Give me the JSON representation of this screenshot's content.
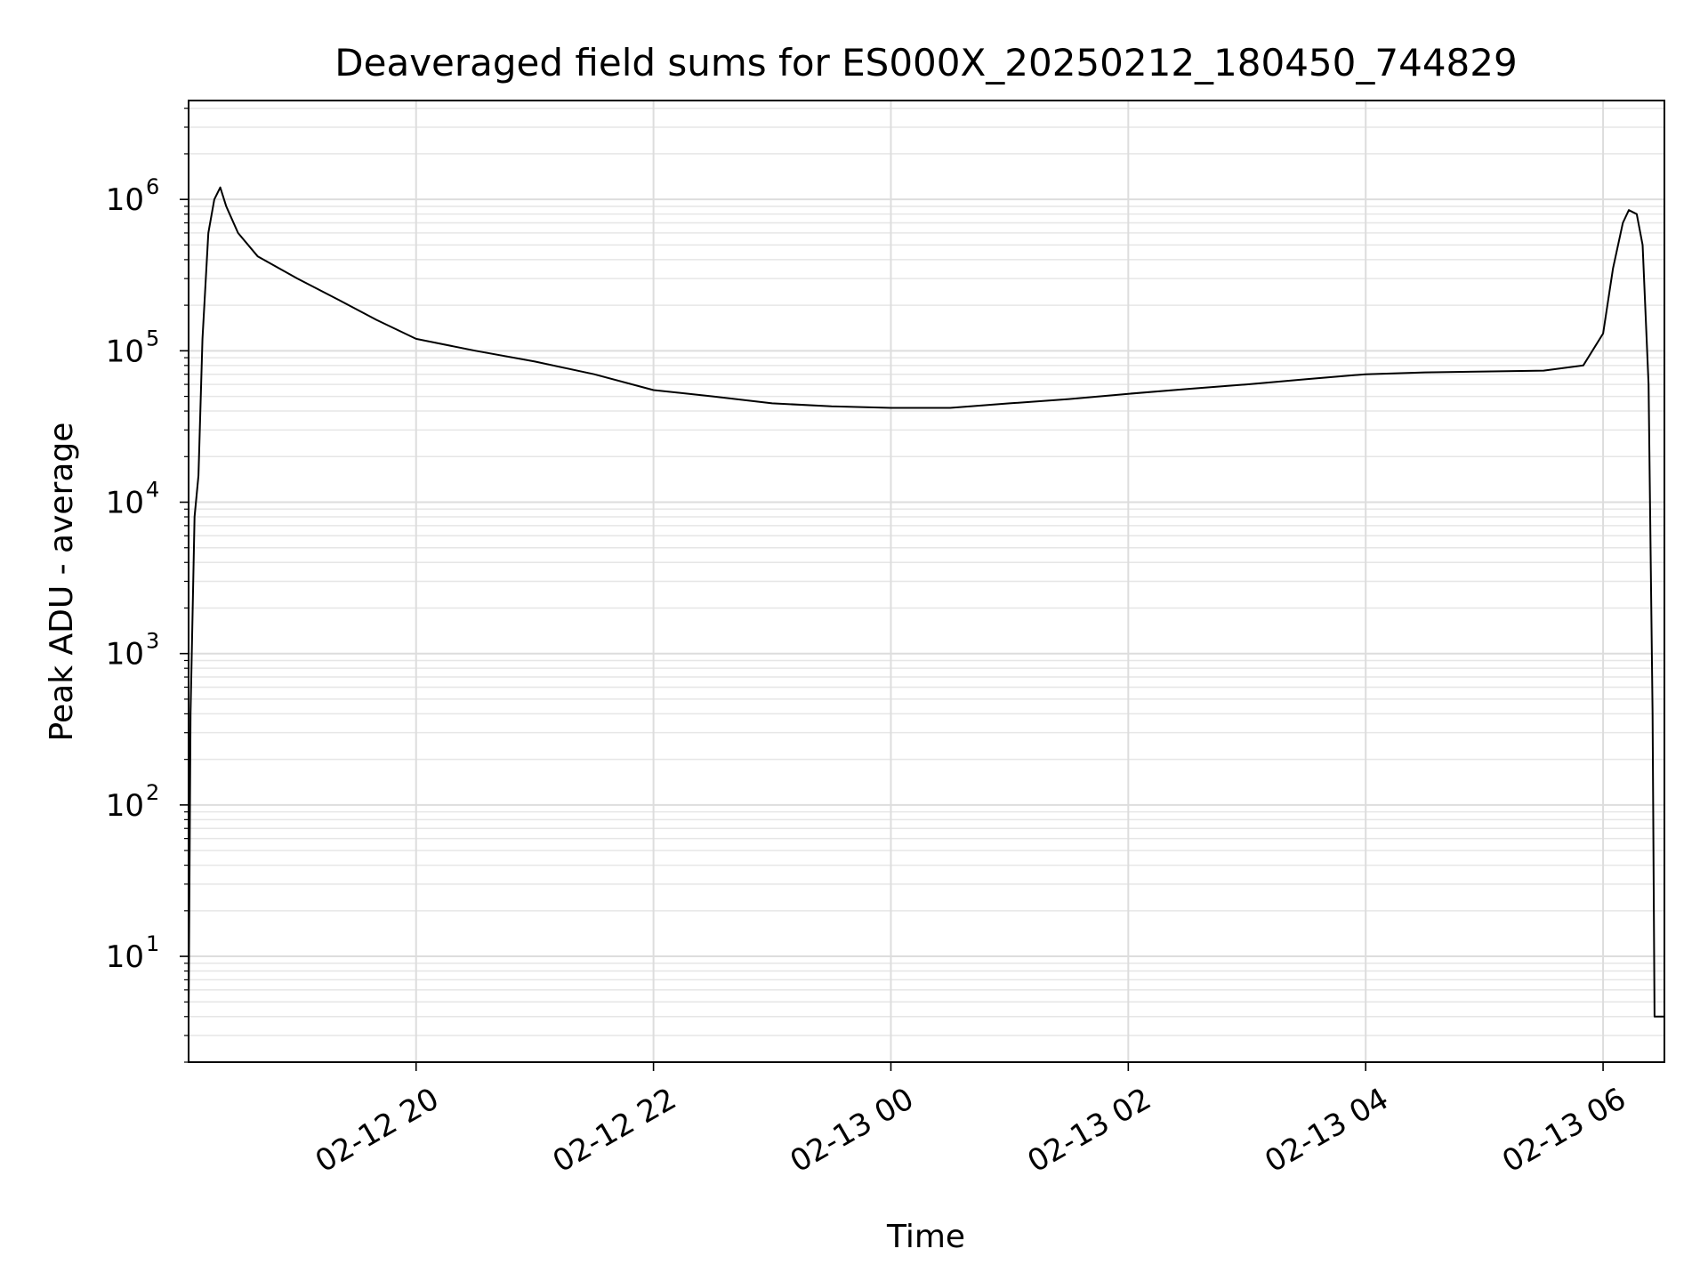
{
  "chart_data": {
    "type": "line",
    "title": "Deaveraged field sums for ES000X_20250212_180450_744829",
    "xlabel": "Time",
    "ylabel": "Peak ADU - average",
    "xscale": "time",
    "yscale": "log",
    "xlim": [
      "2025-02-12T18:05",
      "2025-02-13T06:31"
    ],
    "ylim": [
      2,
      4500000
    ],
    "x_ticks": [
      {
        "value": "2025-02-12T20:00",
        "label": "02-12 20"
      },
      {
        "value": "2025-02-12T22:00",
        "label": "02-12 22"
      },
      {
        "value": "2025-02-13T00:00",
        "label": "02-13 00"
      },
      {
        "value": "2025-02-13T02:00",
        "label": "02-13 02"
      },
      {
        "value": "2025-02-13T04:00",
        "label": "02-13 04"
      },
      {
        "value": "2025-02-13T06:00",
        "label": "02-13 06"
      }
    ],
    "y_ticks": [
      {
        "value": 10,
        "base": "10",
        "exp": "1"
      },
      {
        "value": 100,
        "base": "10",
        "exp": "2"
      },
      {
        "value": 1000,
        "base": "10",
        "exp": "3"
      },
      {
        "value": 10000,
        "base": "10",
        "exp": "4"
      },
      {
        "value": 100000,
        "base": "10",
        "exp": "5"
      },
      {
        "value": 1000000,
        "base": "10",
        "exp": "6"
      }
    ],
    "grid": "major and minor",
    "series": [
      {
        "color": "#000000",
        "points": [
          [
            "2025-02-12T18:05",
            4
          ],
          [
            "2025-02-12T18:06",
            400
          ],
          [
            "2025-02-12T18:08",
            8000
          ],
          [
            "2025-02-12T18:10",
            15000
          ],
          [
            "2025-02-12T18:12",
            120000
          ],
          [
            "2025-02-12T18:15",
            600000
          ],
          [
            "2025-02-12T18:18",
            1000000
          ],
          [
            "2025-02-12T18:21",
            1200000
          ],
          [
            "2025-02-12T18:24",
            900000
          ],
          [
            "2025-02-12T18:30",
            600000
          ],
          [
            "2025-02-12T18:40",
            420000
          ],
          [
            "2025-02-12T19:00",
            300000
          ],
          [
            "2025-02-12T19:20",
            220000
          ],
          [
            "2025-02-12T19:40",
            160000
          ],
          [
            "2025-02-12T20:00",
            120000
          ],
          [
            "2025-02-12T20:30",
            100000
          ],
          [
            "2025-02-12T21:00",
            85000
          ],
          [
            "2025-02-12T21:30",
            70000
          ],
          [
            "2025-02-12T22:00",
            55000
          ],
          [
            "2025-02-12T22:30",
            50000
          ],
          [
            "2025-02-12T23:00",
            45000
          ],
          [
            "2025-02-12T23:30",
            43000
          ],
          [
            "2025-02-13T00:00",
            42000
          ],
          [
            "2025-02-13T00:30",
            42000
          ],
          [
            "2025-02-13T01:00",
            45000
          ],
          [
            "2025-02-13T01:30",
            48000
          ],
          [
            "2025-02-13T02:00",
            52000
          ],
          [
            "2025-02-13T02:30",
            56000
          ],
          [
            "2025-02-13T03:00",
            60000
          ],
          [
            "2025-02-13T03:30",
            65000
          ],
          [
            "2025-02-13T04:00",
            70000
          ],
          [
            "2025-02-13T04:30",
            72000
          ],
          [
            "2025-02-13T05:00",
            73000
          ],
          [
            "2025-02-13T05:30",
            74000
          ],
          [
            "2025-02-13T05:50",
            80000
          ],
          [
            "2025-02-13T06:00",
            130000
          ],
          [
            "2025-02-13T06:05",
            350000
          ],
          [
            "2025-02-13T06:10",
            700000
          ],
          [
            "2025-02-13T06:13",
            850000
          ],
          [
            "2025-02-13T06:17",
            800000
          ],
          [
            "2025-02-13T06:20",
            500000
          ],
          [
            "2025-02-13T06:23",
            60000
          ],
          [
            "2025-02-13T06:25",
            400
          ],
          [
            "2025-02-13T06:26",
            4
          ],
          [
            "2025-02-13T06:31",
            4
          ]
        ]
      }
    ]
  }
}
